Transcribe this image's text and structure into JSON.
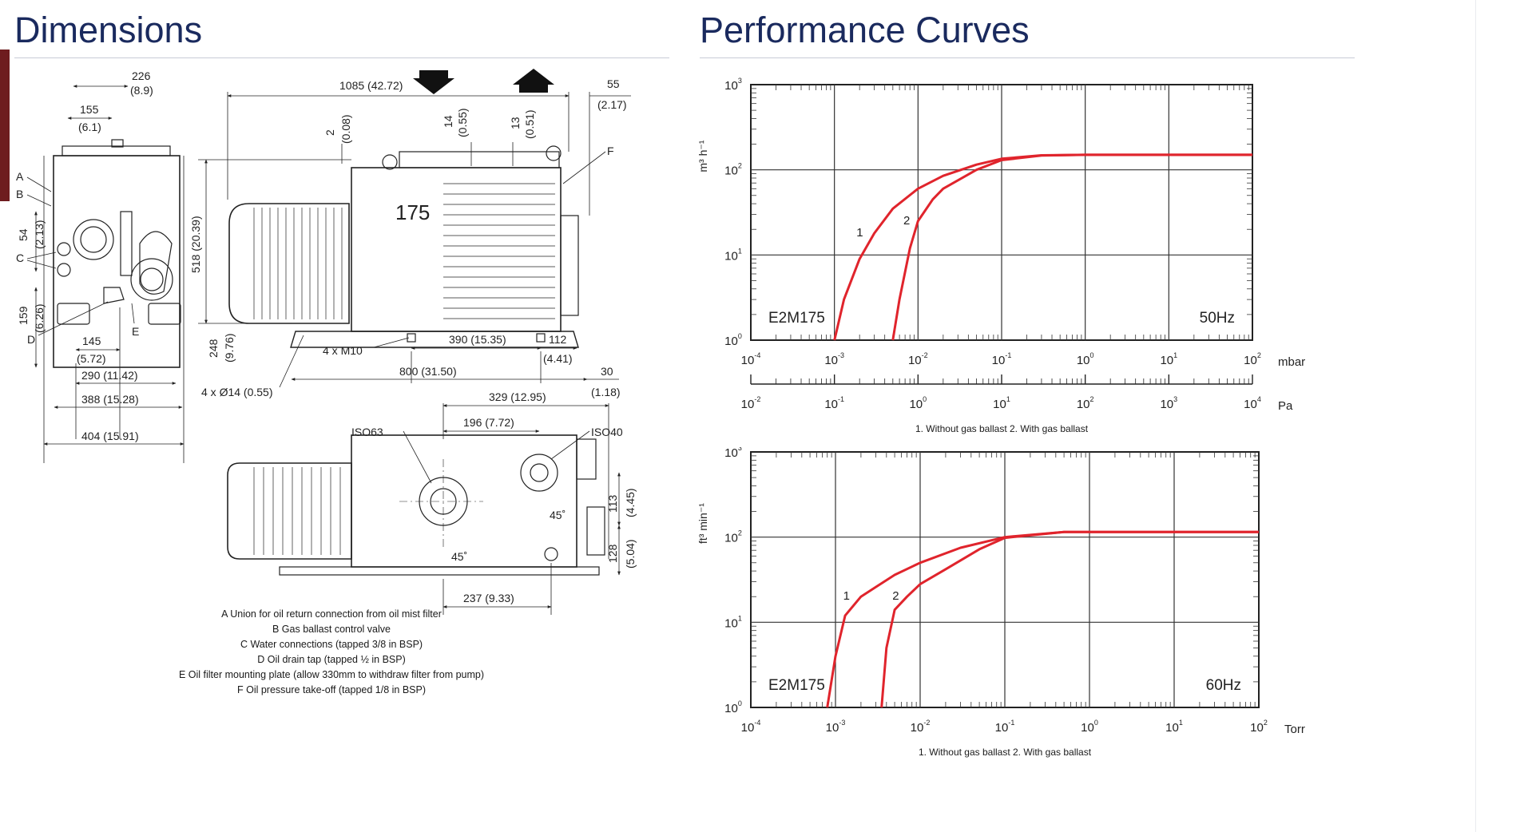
{
  "titles": {
    "dimensions": "Dimensions",
    "performance": "Performance Curves"
  },
  "colors": {
    "title": "#1a2a5e",
    "accent": "#6e1c1f",
    "curve": "#e0242c"
  },
  "icons": [
    "arrow-down-icon",
    "arrow-up-icon"
  ],
  "dimensions": {
    "model_label": "175",
    "dims": {
      "d226": "226",
      "d226_in": "(8.9)",
      "d155": "155",
      "d155_in": "(6.1)",
      "d54": "54",
      "d54_in": "(2.13)",
      "d159": "159",
      "d159_in": "(6.26)",
      "d145": "145",
      "d145_in": "(5.72)",
      "d290": "290 (11.42)",
      "d388": "388 (15.28)",
      "d404": "404 (15.91)",
      "d1085": "1085 (42.72)",
      "d55": "55",
      "d55_in": "(2.17)",
      "d2": "2",
      "d2_in": "(0.08)",
      "d14": "14",
      "d14_in": "(0.55)",
      "d13": "13",
      "d13_in": "(0.51)",
      "d518": "518 (20.39)",
      "d248": "248",
      "d248_in": "(9.76)",
      "m10": "4 x M10",
      "d390": "390 (15.35)",
      "d112": "112",
      "d112_in": "(4.41)",
      "d800": "800 (31.50)",
      "d30": "30",
      "d30_in": "(1.18)",
      "d14hole": "4 x Ø14 (0.55)",
      "d329": "329 (12.95)",
      "d196": "196 (7.72)",
      "iso63": "ISO63",
      "iso40": "ISO40",
      "d113": "113",
      "d113_in": "(4.45)",
      "d128": "128",
      "d128_in": "(5.04)",
      "a45a": "45˚",
      "a45b": "45˚",
      "d237": "237 (9.33)"
    },
    "letters": {
      "A": "A",
      "B": "B",
      "C": "C",
      "D": "D",
      "E": "E",
      "F": "F"
    },
    "notes": [
      "A Union for oil return connection from oil mist filter",
      "B Gas ballast control valve",
      "C Water connections (tapped 3/8 in BSP)",
      "D Oil drain tap (tapped ½ in BSP)",
      "E Oil filter mounting plate (allow 330mm to withdraw filter from pump)",
      "F Oil pressure take-off (tapped 1/8 in BSP)"
    ]
  },
  "chart_data": [
    {
      "type": "line",
      "model": "E2M175",
      "frequency": "50Hz",
      "x_scale": "log",
      "y_scale": "log",
      "xlim": [
        0.0001,
        100
      ],
      "ylim": [
        1,
        1000
      ],
      "x_unit": "mbar",
      "secondary_x_unit": "Pa",
      "secondary_xlim": [
        0.01,
        10000
      ],
      "ylabel": "m³ h⁻¹",
      "x_ticks": [
        "10-4",
        "10-3",
        "10-2",
        "10-1",
        "100",
        "101",
        "102"
      ],
      "secondary_x_ticks": [
        "10-2",
        "10-1",
        "100",
        "101",
        "102",
        "103",
        "104"
      ],
      "y_ticks": [
        "100",
        "101",
        "102",
        "103"
      ],
      "grid": true,
      "series": [
        {
          "name": "1",
          "x": [
            0.001,
            0.0013,
            0.002,
            0.003,
            0.005,
            0.01,
            0.02,
            0.05,
            0.1,
            0.3,
            1,
            10,
            100
          ],
          "y": [
            1.0,
            3.0,
            9.0,
            18,
            35,
            60,
            85,
            115,
            135,
            148,
            150,
            150,
            150
          ]
        },
        {
          "name": "2",
          "x": [
            0.005,
            0.006,
            0.008,
            0.01,
            0.015,
            0.02,
            0.05,
            0.1,
            0.3,
            1,
            10,
            100
          ],
          "y": [
            1.0,
            3.0,
            12,
            25,
            45,
            60,
            100,
            130,
            147,
            150,
            150,
            150
          ]
        }
      ],
      "legend": [
        "1. Without gas ballast",
        "2. With gas ballast"
      ]
    },
    {
      "type": "line",
      "model": "E2M175",
      "frequency": "60Hz",
      "x_scale": "log",
      "y_scale": "log",
      "xlim": [
        0.0001,
        100
      ],
      "ylim": [
        1,
        1000
      ],
      "x_unit": "Torr",
      "ylabel": "ft³ min⁻¹",
      "x_ticks": [
        "10-4",
        "10-3",
        "10-2",
        "10-1",
        "100",
        "101",
        "102"
      ],
      "y_ticks": [
        "100",
        "101",
        "102",
        "103"
      ],
      "grid": true,
      "series": [
        {
          "name": "1",
          "x": [
            0.0008,
            0.001,
            0.0013,
            0.002,
            0.003,
            0.005,
            0.01,
            0.03,
            0.1,
            0.5,
            1,
            10,
            100
          ],
          "y": [
            1.0,
            4.0,
            12,
            20,
            26,
            36,
            50,
            75,
            100,
            115,
            115,
            115,
            115
          ]
        },
        {
          "name": "2",
          "x": [
            0.0035,
            0.004,
            0.005,
            0.007,
            0.01,
            0.02,
            0.05,
            0.1,
            0.5,
            1,
            10,
            100
          ],
          "y": [
            1.0,
            5.0,
            14,
            20,
            28,
            42,
            72,
            98,
            115,
            115,
            115,
            115
          ]
        }
      ],
      "legend": [
        "1. Without gas ballast",
        "2. With gas ballast"
      ]
    }
  ]
}
